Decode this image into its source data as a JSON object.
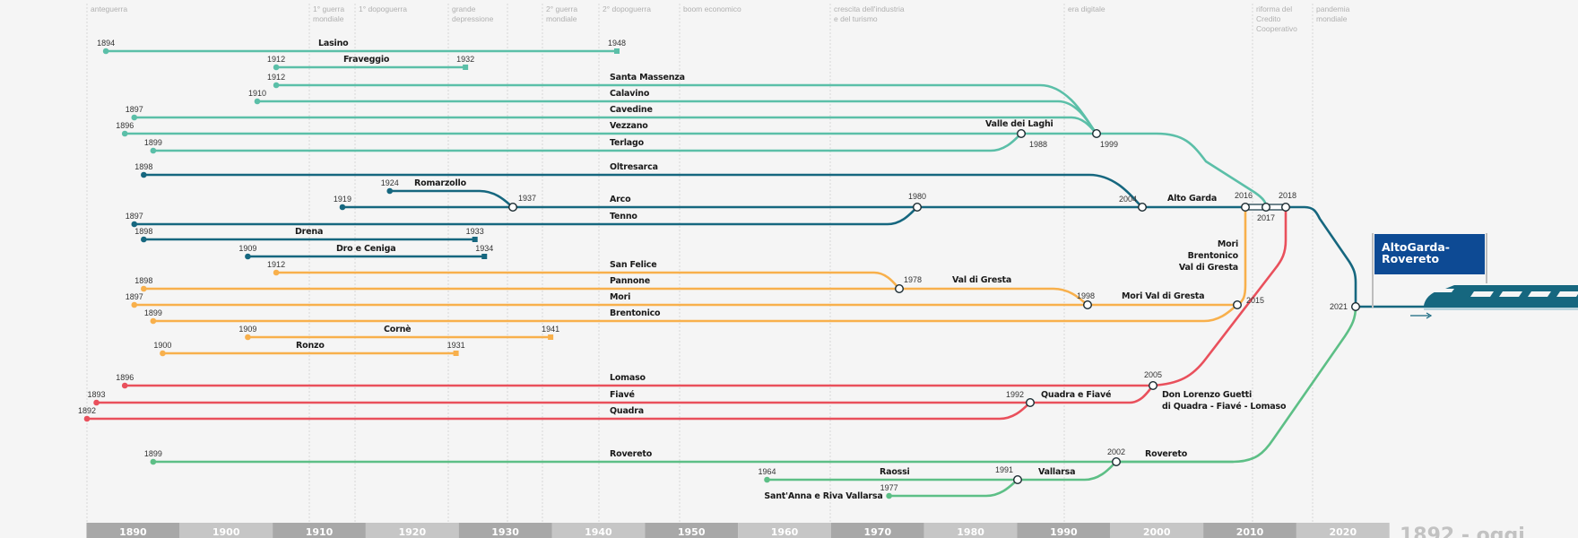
{
  "eras": [
    "anteguerra",
    "",
    "1° guerra\nmondiale",
    "1° dopoguerra",
    "grande\ndepressione",
    "",
    "2° guerra\nmondiale",
    "2° dopoguerra",
    "boom economico",
    "crescita dell'industria\ne del turismo",
    "era digitale",
    "riforma del\nCredito\nCooperativo",
    "pandemia\nmondiale"
  ],
  "axis": {
    "decades": [
      "1890",
      "1900",
      "1910",
      "1920",
      "1930",
      "1940",
      "1950",
      "1960",
      "1970",
      "1980",
      "1990",
      "2000",
      "2010",
      "2020"
    ],
    "range_label": "1892 - oggi"
  },
  "colors": {
    "valle_dei_laghi": "#5bbfa8",
    "alto_garda": "#16677f",
    "val_di_gresta": "#f8b04c",
    "giudicarie": "#e9505c",
    "rovereto": "#5dbf86",
    "sign": "#0d4a94"
  },
  "lines": [
    {
      "name": "Lasino",
      "start": 1894,
      "end": 1948,
      "group": "valle_dei_laghi"
    },
    {
      "name": "Fraveggio",
      "start": 1912,
      "end": 1932,
      "group": "valle_dei_laghi"
    },
    {
      "name": "Santa Massenza",
      "start": 1912,
      "group": "valle_dei_laghi"
    },
    {
      "name": "Calavino",
      "start": 1910,
      "group": "valle_dei_laghi"
    },
    {
      "name": "Cavedine",
      "start": 1897,
      "group": "valle_dei_laghi"
    },
    {
      "name": "Vezzano",
      "start": 1896,
      "group": "valle_dei_laghi"
    },
    {
      "name": "Terlago",
      "start": 1899,
      "group": "valle_dei_laghi"
    },
    {
      "name": "Oltresarca",
      "start": 1898,
      "group": "alto_garda"
    },
    {
      "name": "Romarzollo",
      "start": 1924,
      "group": "alto_garda"
    },
    {
      "name": "Arco",
      "start": 1919,
      "group": "alto_garda"
    },
    {
      "name": "Tenno",
      "start": 1897,
      "group": "alto_garda"
    },
    {
      "name": "Drena",
      "start": 1898,
      "end": 1933,
      "group": "alto_garda"
    },
    {
      "name": "Dro e Ceniga",
      "start": 1909,
      "end": 1934,
      "group": "alto_garda"
    },
    {
      "name": "San Felice",
      "start": 1912,
      "group": "val_di_gresta"
    },
    {
      "name": "Pannone",
      "start": 1898,
      "group": "val_di_gresta"
    },
    {
      "name": "Mori",
      "start": 1897,
      "group": "val_di_gresta"
    },
    {
      "name": "Brentonico",
      "start": 1899,
      "group": "val_di_gresta"
    },
    {
      "name": "Cornè",
      "start": 1909,
      "end": 1941,
      "group": "val_di_gresta"
    },
    {
      "name": "Ronzo",
      "start": 1900,
      "end": 1931,
      "group": "val_di_gresta"
    },
    {
      "name": "Lomaso",
      "start": 1896,
      "group": "giudicarie"
    },
    {
      "name": "Fiavé",
      "start": 1893,
      "group": "giudicarie"
    },
    {
      "name": "Quadra",
      "start": 1892,
      "group": "giudicarie"
    },
    {
      "name": "Rovereto",
      "start": 1899,
      "group": "rovereto"
    },
    {
      "name": "Raossi",
      "start": 1964,
      "group": "rovereto"
    },
    {
      "name": "Sant'Anna e Riva Vallarsa",
      "start": 1977,
      "group": "rovereto"
    }
  ],
  "mergers": [
    {
      "year": 1988,
      "label": [
        "Valle dei Laghi"
      ]
    },
    {
      "year": 1999,
      "label": []
    },
    {
      "year": 1937,
      "label": []
    },
    {
      "year": 1980,
      "label": []
    },
    {
      "year": 2004,
      "label": [
        "Alto Garda"
      ]
    },
    {
      "year": 2016,
      "label": []
    },
    {
      "year": 2017,
      "label": []
    },
    {
      "year": 2018,
      "label": []
    },
    {
      "year": 2021,
      "label": []
    },
    {
      "year": 1978,
      "label": [
        "Val di Gresta"
      ]
    },
    {
      "year": 1998,
      "label": [
        "Mori Val di Gresta"
      ]
    },
    {
      "year": 2015,
      "label": [
        "Mori",
        "Brentonico",
        "Val di Gresta"
      ]
    },
    {
      "year": 2005,
      "label": [
        "Don Lorenzo Guetti",
        "di Quadra - Fiavé - Lomaso"
      ]
    },
    {
      "year": 1992,
      "label": [
        "Quadra e Fiavé"
      ]
    },
    {
      "year": 2002,
      "label": [
        "Rovereto"
      ]
    },
    {
      "year": 1991,
      "label": [
        "Vallarsa"
      ]
    }
  ],
  "final": {
    "title_line1": "AltoGarda-",
    "title_line2": "Rovereto",
    "direction": "arrow-right-icon",
    "vehicle": "train-icon"
  }
}
